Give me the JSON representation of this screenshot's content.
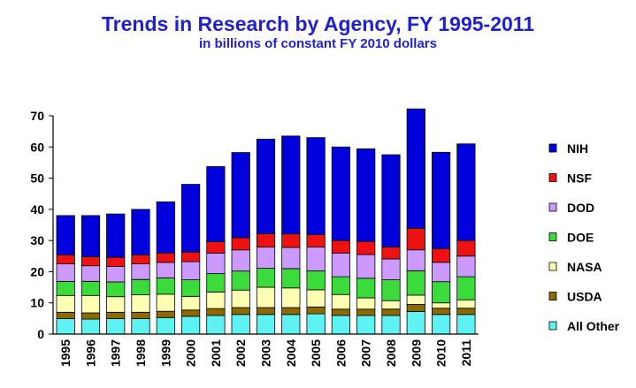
{
  "header": {
    "title": "Trends in Research by Agency, FY 1995-2011",
    "subtitle": "in billions of constant FY 2010 dollars"
  },
  "chart_data": {
    "type": "bar",
    "stacked": true,
    "categories": [
      "1995",
      "1996",
      "1997",
      "1998",
      "1999",
      "2000",
      "2001",
      "2002",
      "2003",
      "2004",
      "2005",
      "2006",
      "2007",
      "2008",
      "2009",
      "2010",
      "2011"
    ],
    "ylim": [
      0,
      70
    ],
    "yticks": [
      0,
      10,
      20,
      30,
      40,
      50,
      60,
      70
    ],
    "grid": false,
    "legend": "right",
    "series": [
      {
        "name": "All Other",
        "color": "#5ff2f2",
        "values": [
          5.0,
          4.8,
          5.0,
          5.0,
          5.3,
          5.7,
          6.0,
          6.3,
          6.3,
          6.3,
          6.5,
          6.0,
          6.0,
          6.0,
          7.2,
          6.3,
          6.3
        ]
      },
      {
        "name": "USDA",
        "color": "#8c6a00",
        "values": [
          2.0,
          2.0,
          2.0,
          2.0,
          2.0,
          2.0,
          2.2,
          2.2,
          2.2,
          2.2,
          2.2,
          2.0,
          2.0,
          2.0,
          2.3,
          2.0,
          2.0
        ]
      },
      {
        "name": "NASA",
        "color": "#ffffb4",
        "values": [
          5.4,
          5.6,
          5.0,
          5.6,
          5.5,
          4.4,
          5.3,
          5.6,
          6.5,
          6.3,
          5.5,
          4.7,
          3.6,
          2.7,
          3.0,
          1.7,
          2.7
        ]
      },
      {
        "name": "DOE",
        "color": "#3bdb3b",
        "values": [
          4.5,
          4.5,
          4.7,
          4.9,
          5.2,
          5.3,
          5.9,
          6.1,
          6.1,
          6.2,
          6.1,
          5.7,
          6.3,
          6.7,
          7.8,
          6.8,
          7.4
        ]
      },
      {
        "name": "DOD",
        "color": "#cc99ff",
        "values": [
          5.6,
          5.0,
          5.0,
          5.0,
          5.0,
          5.8,
          6.6,
          6.8,
          6.8,
          6.8,
          7.6,
          7.6,
          7.6,
          6.7,
          6.7,
          6.2,
          6.6
        ]
      },
      {
        "name": "NSF",
        "color": "#ee1111",
        "values": [
          2.9,
          2.9,
          2.9,
          2.9,
          3.0,
          3.1,
          3.6,
          3.9,
          4.3,
          4.3,
          4.0,
          4.0,
          4.2,
          3.8,
          6.9,
          4.4,
          5.0
        ]
      },
      {
        "name": "NIH",
        "color": "#0000dd",
        "values": [
          12.6,
          13.2,
          13.9,
          14.6,
          16.4,
          21.7,
          24.1,
          27.3,
          30.3,
          31.4,
          31.1,
          30.0,
          29.7,
          29.6,
          38.3,
          30.9,
          31.0
        ]
      }
    ]
  }
}
